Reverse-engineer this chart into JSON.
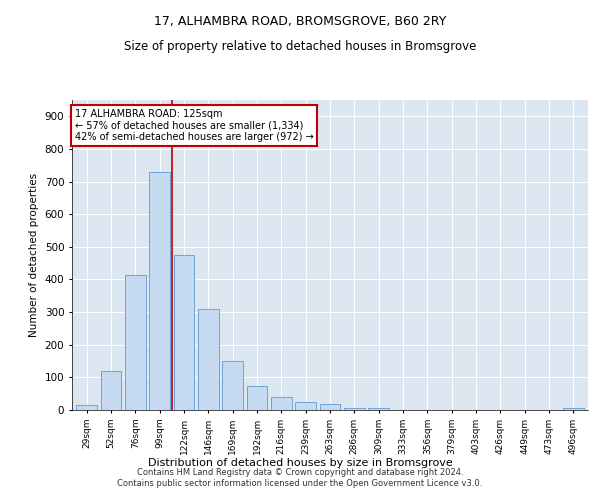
{
  "title": "17, ALHAMBRA ROAD, BROMSGROVE, B60 2RY",
  "subtitle": "Size of property relative to detached houses in Bromsgrove",
  "xlabel": "Distribution of detached houses by size in Bromsgrove",
  "ylabel": "Number of detached properties",
  "categories": [
    "29sqm",
    "52sqm",
    "76sqm",
    "99sqm",
    "122sqm",
    "146sqm",
    "169sqm",
    "192sqm",
    "216sqm",
    "239sqm",
    "263sqm",
    "286sqm",
    "309sqm",
    "333sqm",
    "356sqm",
    "379sqm",
    "403sqm",
    "426sqm",
    "449sqm",
    "473sqm",
    "496sqm"
  ],
  "values": [
    15,
    120,
    415,
    730,
    475,
    310,
    150,
    75,
    40,
    25,
    18,
    5,
    5,
    0,
    0,
    0,
    0,
    0,
    0,
    0,
    5
  ],
  "bar_color": "#c5d9f1",
  "bar_edge_color": "#5b9bd5",
  "vline_x": 3.5,
  "vline_color": "#c00000",
  "annotation_title": "17 ALHAMBRA ROAD: 125sqm",
  "annotation_line1": "← 57% of detached houses are smaller (1,334)",
  "annotation_line2": "42% of semi-detached houses are larger (972) →",
  "annotation_box_color": "#ffffff",
  "annotation_box_edge": "#c00000",
  "ylim": [
    0,
    950
  ],
  "yticks": [
    0,
    100,
    200,
    300,
    400,
    500,
    600,
    700,
    800,
    900
  ],
  "background_color": "#dce6f1",
  "title_fontsize": 9,
  "subtitle_fontsize": 8.5,
  "footer_line1": "Contains HM Land Registry data © Crown copyright and database right 2024.",
  "footer_line2": "Contains public sector information licensed under the Open Government Licence v3.0."
}
